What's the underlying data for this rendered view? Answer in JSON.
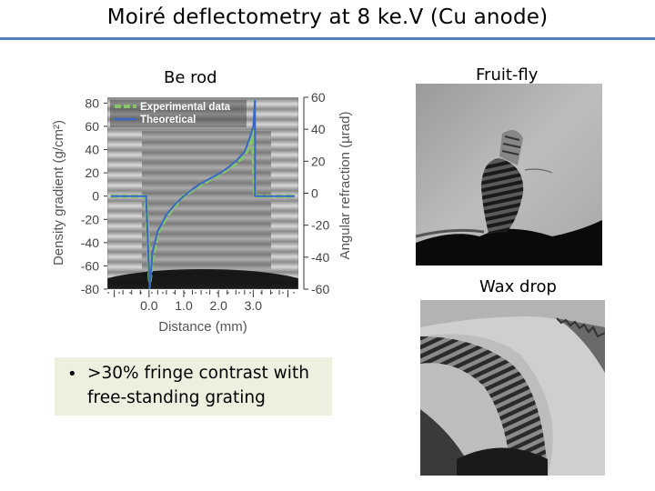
{
  "slide": {
    "title": "Moiré deflectometry at 8 ke.V (Cu anode)"
  },
  "captions": {
    "be_rod": "Be rod",
    "fruit_fly": "Fruit-fly",
    "wax_drop": "Wax drop"
  },
  "bullet": {
    "text": ">30% fringe contrast with free-standing grating"
  },
  "colors": {
    "accent_rule": "#4f81bd",
    "bullet_background": "#ebf1de",
    "experimental": "#86c56a",
    "theoretical": "#3a67c4"
  },
  "chart_data": {
    "type": "line",
    "xlabel": "Distance (mm)",
    "ylabel": "Density gradient (g/cm²)",
    "y2label": "Angular refraction (µrad)",
    "xlim": [
      -1.2,
      4.3
    ],
    "ylim": [
      -80,
      85
    ],
    "y2lim": [
      -60,
      60
    ],
    "x_ticks": [
      "0.0",
      "1.0",
      "2.0",
      "3.0"
    ],
    "x_tick_values": [
      0,
      1,
      2,
      3
    ],
    "y_ticks": [
      "80",
      "60",
      "40",
      "20",
      "0",
      "-20",
      "-40",
      "-60",
      "-80"
    ],
    "y_tick_values": [
      80,
      60,
      40,
      20,
      0,
      -20,
      -40,
      -60,
      -80
    ],
    "y2_ticks": [
      "60",
      "40",
      "20",
      "0",
      "-20",
      "-40",
      "-60"
    ],
    "y2_tick_values": [
      60,
      40,
      20,
      0,
      -20,
      -40,
      -60
    ],
    "legend_placement": "top-left",
    "background": "moire fringe image",
    "series": [
      {
        "name": "Experimental data",
        "style": "dashed",
        "x": [
          -1.1,
          -0.2,
          -0.1,
          -0.04,
          0.02,
          0.1,
          0.25,
          0.5,
          0.75,
          1.0,
          1.25,
          1.5,
          1.75,
          2.0,
          2.25,
          2.5,
          2.75,
          2.9,
          2.98,
          3.05,
          3.12,
          3.2,
          4.2
        ],
        "y": [
          0,
          0,
          -1,
          -30,
          -74,
          -55,
          -32,
          -18,
          -8,
          0,
          5,
          10,
          14,
          18,
          23,
          28,
          35,
          44,
          56,
          0,
          0,
          0,
          0
        ]
      },
      {
        "name": "Theoretical",
        "style": "solid",
        "x": [
          -1.1,
          -0.08,
          -0.08,
          0.02,
          0.1,
          0.25,
          0.5,
          0.75,
          1.0,
          1.25,
          1.5,
          1.75,
          2.0,
          2.25,
          2.5,
          2.75,
          2.9,
          3.0,
          3.05,
          3.05,
          3.1,
          4.2
        ],
        "y": [
          0,
          0,
          -4,
          -80,
          -48,
          -30,
          -16,
          -7,
          0,
          6,
          11,
          15,
          19,
          24,
          30,
          38,
          50,
          60,
          82,
          0,
          0,
          0
        ]
      }
    ]
  }
}
